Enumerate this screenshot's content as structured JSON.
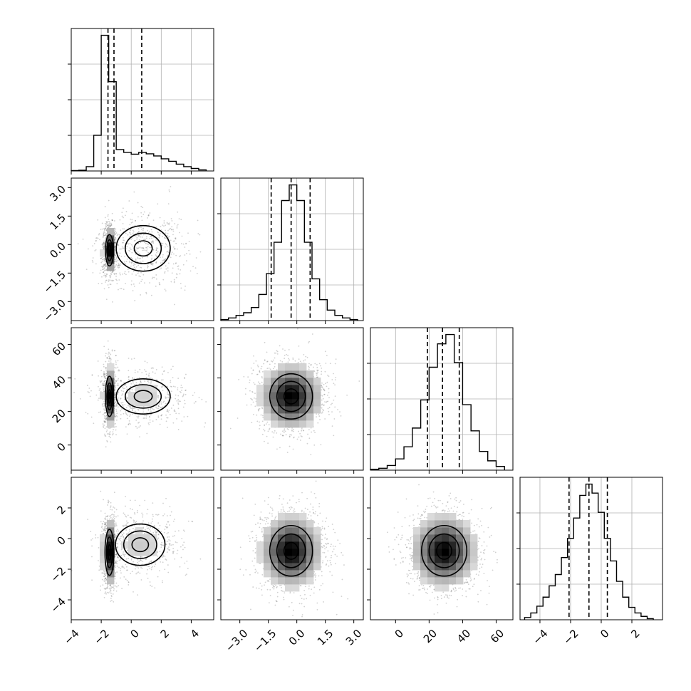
{
  "chart_data": {
    "type": "corner",
    "grid": true,
    "colors": {
      "line": "#000000",
      "grid": "#b0b0b0",
      "points": "#555555"
    },
    "parameters": [
      {
        "range": [
          -4.0,
          5.5
        ],
        "ticks": [
          -4,
          -2,
          0,
          2,
          4
        ],
        "tick_labels": [
          "−4",
          "−2",
          "0",
          "2",
          "4"
        ],
        "quantiles": [
          -1.55,
          -1.15,
          0.7
        ]
      },
      {
        "range": [
          -4.0,
          3.5
        ],
        "ticks": [
          -3.0,
          -1.5,
          0.0,
          1.5,
          3.0
        ],
        "tick_labels": [
          "−3.0",
          "−1.5",
          "0.0",
          "1.5",
          "3.0"
        ],
        "quantiles": [
          -1.35,
          -0.3,
          0.7
        ]
      },
      {
        "range": [
          -15,
          70
        ],
        "ticks": [
          0,
          20,
          40,
          60
        ],
        "tick_labels": [
          "0",
          "20",
          "40",
          "60"
        ],
        "quantiles": [
          19,
          28,
          38
        ]
      },
      {
        "range": [
          -5.3,
          4.0
        ],
        "ticks": [
          -4,
          -2,
          0,
          2
        ],
        "tick_labels": [
          "−4",
          "−2",
          "0",
          "2"
        ],
        "quantiles": [
          -2.1,
          -0.8,
          0.4
        ]
      }
    ],
    "histograms": [
      {
        "bin_edges": [
          -4.0,
          -3.5,
          -3.0,
          -2.5,
          -2.0,
          -1.5,
          -1.0,
          -0.5,
          0.0,
          0.5,
          1.0,
          1.5,
          2.0,
          2.5,
          3.0,
          3.5,
          4.0,
          4.5,
          5.0
        ],
        "counts": [
          1,
          2,
          12,
          100,
          380,
          250,
          60,
          52,
          47,
          52,
          48,
          42,
          34,
          27,
          19,
          12,
          7,
          3
        ]
      },
      {
        "bin_edges": [
          -4.0,
          -3.6,
          -3.2,
          -2.8,
          -2.4,
          -2.0,
          -1.6,
          -1.2,
          -0.8,
          -0.4,
          0.0,
          0.4,
          0.8,
          1.2,
          1.6,
          2.0,
          2.4,
          2.8,
          3.2
        ],
        "counts": [
          2,
          5,
          10,
          15,
          25,
          50,
          90,
          150,
          230,
          260,
          230,
          150,
          80,
          40,
          20,
          10,
          5,
          2
        ]
      },
      {
        "bin_edges": [
          -15,
          -10,
          -5,
          0,
          5,
          10,
          15,
          20,
          25,
          30,
          35,
          40,
          45,
          50,
          55,
          60,
          65
        ],
        "counts": [
          1,
          2,
          5,
          12,
          25,
          45,
          75,
          110,
          135,
          145,
          115,
          70,
          42,
          20,
          10,
          4
        ]
      },
      {
        "bin_edges": [
          -5.0,
          -4.6,
          -4.2,
          -3.8,
          -3.4,
          -3.0,
          -2.6,
          -2.2,
          -1.8,
          -1.4,
          -1.0,
          -0.6,
          -0.2,
          0.2,
          0.6,
          1.0,
          1.4,
          1.8,
          2.2,
          2.6,
          3.0,
          3.4
        ],
        "counts": [
          2,
          6,
          12,
          20,
          30,
          40,
          55,
          72,
          90,
          110,
          120,
          112,
          95,
          72,
          52,
          34,
          20,
          11,
          6,
          3,
          1
        ]
      }
    ],
    "density_mode": [
      {
        "center": [
          -1.45,
          -0.3
        ],
        "spread": [
          0.18,
          0.55
        ],
        "weight": 0.6
      },
      {
        "center": [
          0.8,
          -0.2
        ],
        "spread": [
          1.2,
          0.8
        ],
        "weight": 0.4
      }
    ],
    "density_mode_2": [
      {
        "center": [
          -1.45,
          29
        ],
        "spread": [
          0.18,
          8
        ],
        "weight": 0.6
      },
      {
        "center": [
          0.8,
          29
        ],
        "spread": [
          1.2,
          7
        ],
        "weight": 0.4
      }
    ],
    "density_mode_3": [
      {
        "center": [
          -1.45,
          -0.9
        ],
        "spread": [
          0.2,
          1.0
        ],
        "weight": 0.6
      },
      {
        "center": [
          0.6,
          -0.4
        ],
        "spread": [
          1.1,
          0.9
        ],
        "weight": 0.4
      }
    ]
  }
}
